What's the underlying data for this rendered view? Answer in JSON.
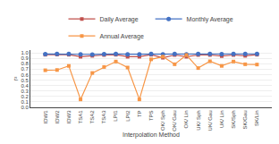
{
  "chart_data": {
    "type": "line",
    "xlabel": "Interpolation Method",
    "ylabel": "r²",
    "categories": [
      "IDW1",
      "IDW2",
      "IDW3",
      "TSA1",
      "TSA2",
      "TSA3",
      "LPI1",
      "LPI2",
      "TP",
      "TPS",
      "OK/ Sph",
      "OK/ Gau",
      "OK/ Lin",
      "UK/ Sph",
      "UK/ Gau",
      "UK/ Lin",
      "SK/Sph",
      "SK/Gau",
      "SK/Lin"
    ],
    "series": [
      {
        "name": "Daily Average",
        "color": "#c0504d",
        "marker": "square",
        "values": [
          0.965,
          0.968,
          0.965,
          0.928,
          0.945,
          0.96,
          0.965,
          0.928,
          0.928,
          0.965,
          0.91,
          0.96,
          0.928,
          0.96,
          0.96,
          0.94,
          0.96,
          0.945,
          0.965
        ]
      },
      {
        "name": "Monthly Average",
        "color": "#4472c4",
        "marker": "circle",
        "values": [
          0.978,
          0.98,
          0.98,
          0.972,
          0.97,
          0.977,
          0.98,
          0.974,
          0.974,
          0.98,
          0.974,
          0.98,
          0.972,
          0.98,
          0.98,
          0.977,
          0.98,
          0.98,
          0.98
        ]
      },
      {
        "name": "Annual Average",
        "color": "#f79646",
        "marker": "square",
        "values": [
          0.68,
          0.685,
          0.76,
          0.145,
          0.63,
          0.74,
          0.84,
          0.73,
          0.145,
          0.88,
          0.93,
          0.79,
          0.96,
          0.72,
          0.845,
          0.76,
          0.84,
          0.79,
          0.785
        ]
      }
    ],
    "ylim": [
      0.0,
      1.05
    ],
    "yticks": [
      {
        "value": 0.0,
        "label": "0.0"
      },
      0.1,
      0.2,
      0.3,
      0.4,
      0.5,
      0.6,
      0.7,
      0.8,
      0.9,
      {
        "value": 1.0,
        "label": "1.0"
      }
    ],
    "grid": true,
    "legend": "top"
  }
}
